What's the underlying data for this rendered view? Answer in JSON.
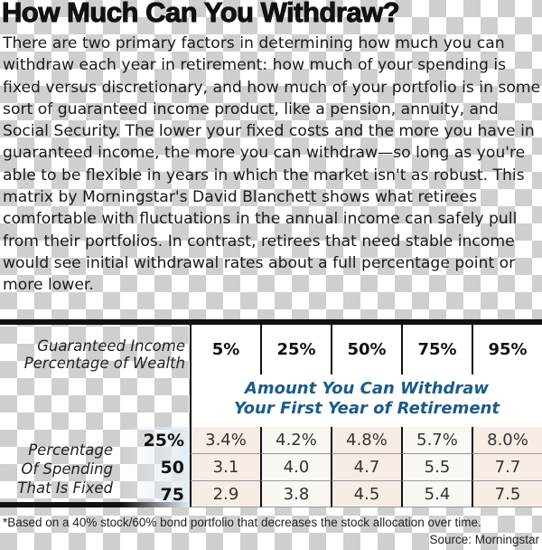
{
  "title": "How Much Can You Withdraw?",
  "body": "There are two primary factors in determining how much you can withdraw each year in retirement: how much of your spending is fixed versus discretionary, and how much of your portfolio is in some sort of guaranteed income product, like a pension, annuity, and Social Security. The lower your fixed costs and the more you have in guaranteed income, the more you can withdraw—so long as you're able to be flexible in years in which the market isn't as robust. This matrix by Morningstar's David Blanchett shows what retirees comfortable with fluctuations in the annual income can safely pull from their portfolios. In contrast, retirees that need stable income would see initial withdrawal rates about a full percentage point or more lower.",
  "table": {
    "col_header_label": [
      "Guaranteed Income",
      "Percentage of Wealth"
    ],
    "columns": [
      "5%",
      "25%",
      "50%",
      "75%",
      "95%"
    ],
    "subtitle": [
      "Amount You Can Withdraw",
      "Your First Year of Retirement"
    ],
    "row_header_label": [
      "Percentage",
      "Of Spending",
      "That Is Fixed"
    ],
    "rows": [
      {
        "label": "25%",
        "values": [
          "3.4%",
          "4.2%",
          "4.8%",
          "5.7%",
          "8.0%"
        ]
      },
      {
        "label": "50",
        "values": [
          "3.1",
          "4.0",
          "4.7",
          "5.5",
          "7.7"
        ]
      },
      {
        "label": "75",
        "values": [
          "2.9",
          "3.8",
          "4.5",
          "5.4",
          "7.5"
        ]
      }
    ]
  },
  "footnote": "*Based on a 40% stock/60% bond portfolio that decreases the stock allocation over time.",
  "source": "Source: Morningstar",
  "colors": {
    "accent_blue": "#1a5b8a",
    "cell_beige": "#f6ede5"
  }
}
